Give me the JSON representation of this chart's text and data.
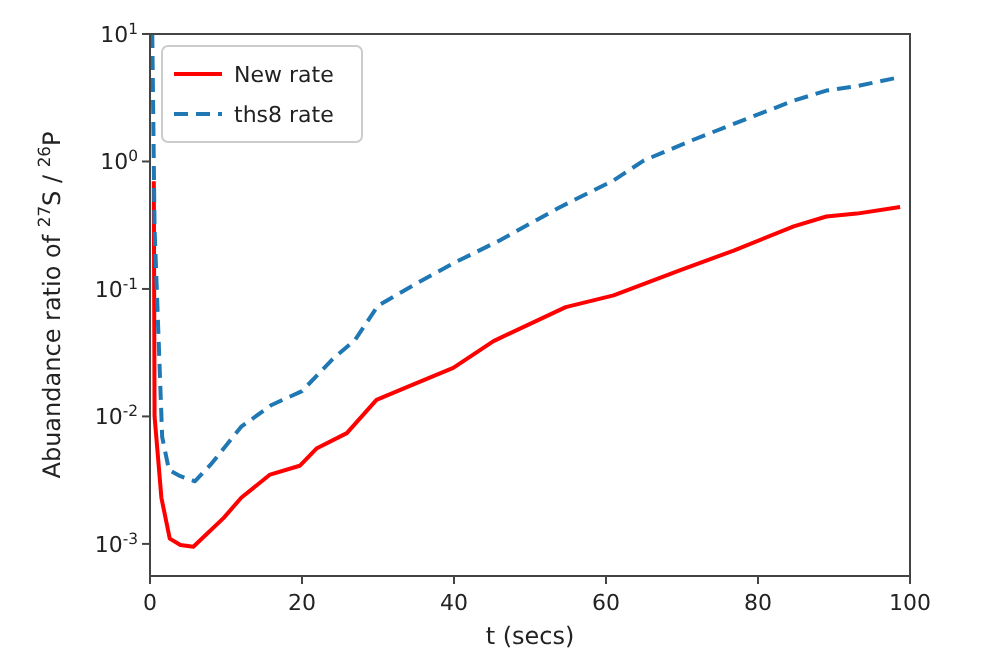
{
  "chart_data": {
    "type": "line",
    "xlabel": "t (secs)",
    "ylabel": "Abuandance ratio of $^{27}$S / $^{26}$P",
    "log": "y",
    "xlim": [
      0,
      100
    ],
    "xticks": [
      0,
      20,
      40,
      60,
      80,
      100
    ],
    "ylim": [
      0.00056,
      10
    ],
    "yticks": [
      {
        "value": 0.001,
        "label": "10$^{-3}$"
      },
      {
        "value": 0.01,
        "label": "10$^{-2}$"
      },
      {
        "value": 0.1,
        "label": "10$^{-1}$"
      },
      {
        "value": 1,
        "label": "10$^{0}$"
      },
      {
        "value": 10,
        "label": "10$^{1}$"
      }
    ],
    "grid": false,
    "legend": "top left",
    "marker": "none",
    "series": [
      {
        "name": "New rate",
        "color": "#ff0000",
        "line_style": "solid",
        "x": [
          0.5,
          0.6,
          1.5,
          2.6,
          4,
          5.7,
          7.5,
          9.7,
          12,
          15.8,
          19.7,
          21.9,
          25.9,
          29.8,
          33.8,
          39.9,
          45.2,
          54.7,
          61,
          69.7,
          76.8,
          84.7,
          89,
          93,
          98.7
        ],
        "values": [
          0.7,
          0.01,
          0.0023,
          0.0011,
          0.00098,
          0.00095,
          0.0012,
          0.0016,
          0.0023,
          0.0035,
          0.0041,
          0.0056,
          0.0074,
          0.0135,
          0.017,
          0.024,
          0.039,
          0.072,
          0.089,
          0.14,
          0.2,
          0.31,
          0.37,
          0.39,
          0.44
        ]
      },
      {
        "name": "ths8 rate",
        "color": "#1f77b4",
        "line_style": "dashed",
        "x": [
          0.3,
          0.6,
          1.6,
          2.5,
          4,
          5.9,
          8,
          12,
          16,
          20,
          24,
          27,
          30,
          35,
          40,
          46,
          54,
          61,
          65,
          71.5,
          78,
          84.7,
          89,
          93,
          98
        ],
        "values": [
          10,
          0.3,
          0.0069,
          0.0038,
          0.0034,
          0.0031,
          0.0042,
          0.0083,
          0.0123,
          0.0158,
          0.028,
          0.04,
          0.074,
          0.11,
          0.16,
          0.24,
          0.44,
          0.71,
          1.02,
          1.48,
          2.1,
          3.0,
          3.6,
          3.9,
          4.5
        ]
      }
    ]
  }
}
